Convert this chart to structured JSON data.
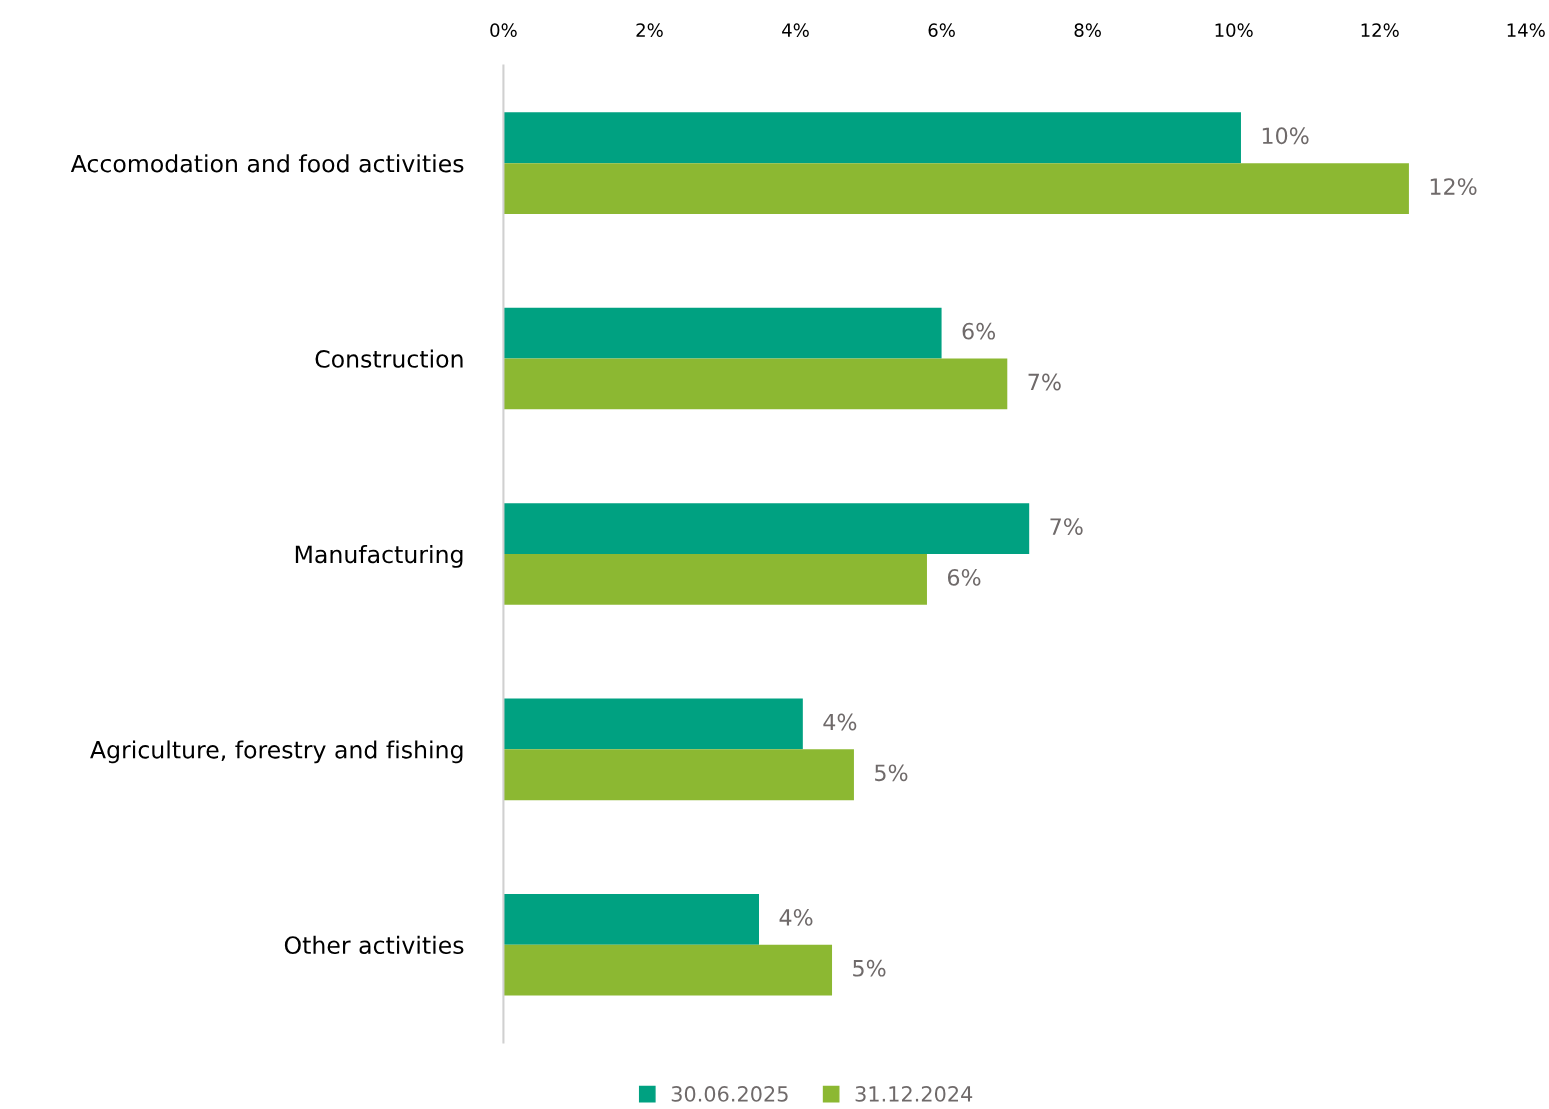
{
  "chart_data": {
    "type": "bar",
    "orientation": "horizontal",
    "categories": [
      "Accomodation and food activities",
      "Construction",
      "Manufacturing",
      "Agriculture, forestry and fishing",
      "Other activities"
    ],
    "series": [
      {
        "name": "30.06.2025",
        "color": "#00a181",
        "values": [
          10.1,
          6.0,
          7.2,
          4.1,
          3.5
        ],
        "value_labels": [
          "10%",
          "6%",
          "7%",
          "4%",
          "4%"
        ]
      },
      {
        "name": "31.12.2024",
        "color": "#8cb832",
        "values": [
          12.4,
          6.9,
          5.8,
          4.8,
          4.5
        ],
        "value_labels": [
          "12%",
          "7%",
          "6%",
          "5%",
          "5%"
        ]
      }
    ],
    "xlim": [
      0,
      14
    ],
    "xticks": [
      {
        "value": 0,
        "label": "0%"
      },
      {
        "value": 2,
        "label": "2%"
      },
      {
        "value": 4,
        "label": "4%"
      },
      {
        "value": 6,
        "label": "6%"
      },
      {
        "value": 8,
        "label": "8%"
      },
      {
        "value": 10,
        "label": "10%"
      },
      {
        "value": 12,
        "label": "12%"
      },
      {
        "value": 14,
        "label": "14%"
      }
    ],
    "grid": false,
    "legend": "bottom"
  }
}
